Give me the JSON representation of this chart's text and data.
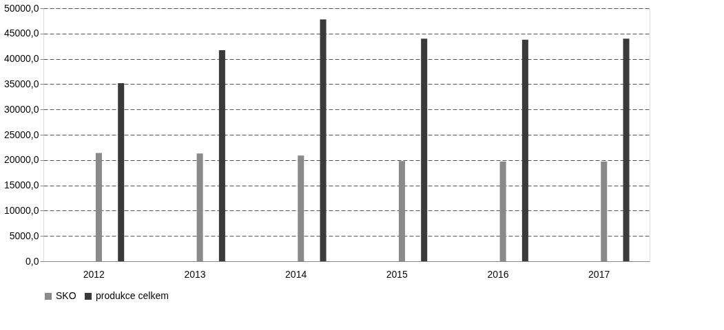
{
  "chart_data": {
    "type": "bar",
    "categories": [
      "2012",
      "2013",
      "2014",
      "2015",
      "2016",
      "2017"
    ],
    "series": [
      {
        "name": "SKO",
        "color": "#8a8a8a",
        "values": [
          21400,
          21300,
          20900,
          19800,
          19700,
          19700
        ]
      },
      {
        "name": "produkce celkem",
        "color": "#3a3a3a",
        "values": [
          35200,
          41700,
          47800,
          44000,
          43800,
          44000
        ]
      }
    ],
    "ylim": [
      0,
      50000
    ],
    "yticks": [
      {
        "value": 0,
        "label": "0,0"
      },
      {
        "value": 5000,
        "label": "5000,0"
      },
      {
        "value": 10000,
        "label": "10000,0"
      },
      {
        "value": 15000,
        "label": "15000,0"
      },
      {
        "value": 20000,
        "label": "20000,0"
      },
      {
        "value": 25000,
        "label": "25000,0"
      },
      {
        "value": 30000,
        "label": "30000,0"
      },
      {
        "value": 35000,
        "label": "35000,0"
      },
      {
        "value": 40000,
        "label": "40000,0"
      },
      {
        "value": 45000,
        "label": "45000,0"
      },
      {
        "value": 50000,
        "label": "50000,0"
      }
    ],
    "grid": "y",
    "legend": "bottom"
  }
}
